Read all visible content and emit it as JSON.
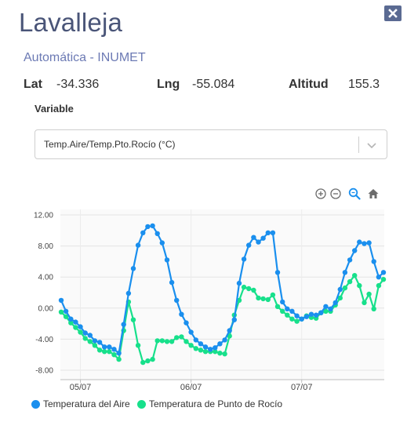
{
  "station": {
    "name": "Lavalleja",
    "type": "Automática - INUMET"
  },
  "coords": {
    "lat_label": "Lat",
    "lat_value": "-34.336",
    "lng_label": "Lng",
    "lng_value": "-55.084",
    "alt_label": "Altitud",
    "alt_value": "155.3"
  },
  "variable": {
    "label": "Variable",
    "selected": "Temp.Aire/Temp.Pto.Rocío (°C)"
  },
  "icons": {
    "close": "close-icon",
    "zoom_in": "zoom-in-icon",
    "zoom_out": "zoom-out-icon",
    "zoom": "magnifier-icon",
    "reset": "home-icon"
  },
  "colors": {
    "air": "#1a8fee",
    "dew": "#17e08b",
    "accent": "#4a5578"
  },
  "chart_data": {
    "type": "line",
    "y_ticks": [
      "12.00",
      "8.00",
      "4.00",
      "0.00",
      "-4.00",
      "-8.00"
    ],
    "ylim": [
      -8,
      12
    ],
    "x_ticks": [
      "05/07",
      "06/07",
      "07/07"
    ],
    "x_tick_index": [
      4,
      27,
      50
    ],
    "series": [
      {
        "name": "Temperatura del Aire",
        "color": "#1a8fee",
        "values": [
          1.0,
          -0.4,
          -1.4,
          -1.8,
          -2.4,
          -3.2,
          -3.5,
          -4.2,
          -4.4,
          -5.0,
          -5.0,
          -5.3,
          -5.8,
          -2.1,
          1.9,
          5.1,
          8.1,
          9.7,
          10.5,
          10.6,
          9.6,
          8.4,
          6.2,
          3.3,
          1.0,
          -0.8,
          -1.9,
          -3.1,
          -4.1,
          -4.6,
          -5.0,
          -5.3,
          -5.1,
          -4.6,
          -4.1,
          -2.9,
          -1.5,
          3.2,
          6.3,
          8.1,
          9.1,
          8.5,
          9.0,
          9.7,
          9.7,
          4.6,
          0.8,
          -0.1,
          -0.4,
          -1.0,
          -1.4,
          -1.1,
          -0.8,
          -0.9,
          -0.6,
          0.2,
          -0.1,
          0.7,
          2.4,
          4.6,
          6.2,
          7.4,
          8.5,
          8.3,
          8.4,
          6.0,
          4.0,
          4.6
        ]
      },
      {
        "name": "Temperatura de Punto de Rocío",
        "color": "#17e08b",
        "values": [
          -0.5,
          -1.1,
          -1.9,
          -2.5,
          -3.1,
          -3.9,
          -4.3,
          -4.8,
          -5.4,
          -5.6,
          -5.6,
          -6.0,
          -6.6,
          -2.9,
          0.8,
          -1.5,
          -4.8,
          -7.0,
          -6.8,
          -6.6,
          -4.2,
          -4.2,
          -4.3,
          -4.3,
          -3.8,
          -3.7,
          -4.3,
          -4.8,
          -5.2,
          -5.4,
          -5.6,
          -5.6,
          -5.6,
          -5.8,
          -5.9,
          -3.6,
          -0.9,
          1.0,
          2.7,
          2.5,
          2.3,
          1.3,
          1.2,
          1.1,
          1.7,
          0.2,
          -0.4,
          -0.9,
          -1.4,
          -1.7,
          -1.4,
          -1.0,
          -1.2,
          -1.3,
          -0.6,
          -0.4,
          -0.4,
          0.4,
          1.3,
          2.6,
          3.4,
          4.2,
          2.9,
          0.7,
          1.8,
          -0.1,
          2.9,
          3.7
        ]
      }
    ]
  }
}
